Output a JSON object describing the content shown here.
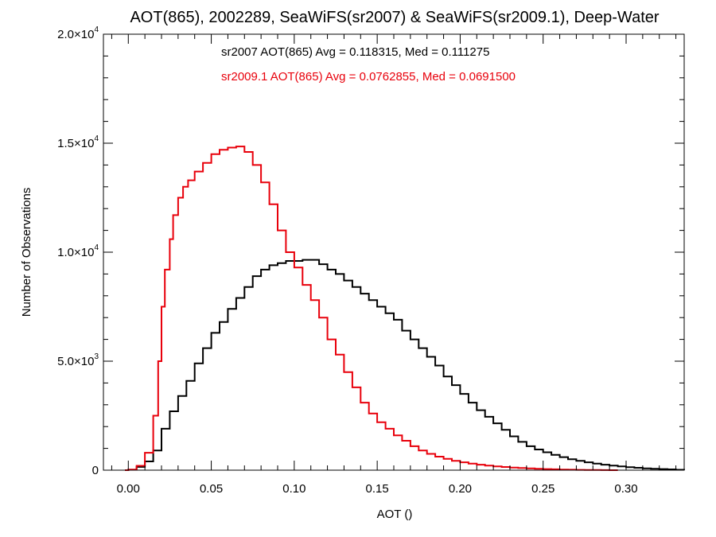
{
  "chart_data": {
    "type": "line",
    "title": "AOT(865), 2002289, SeaWiFS(sr2007) & SeaWiFS(sr2009.1), Deep-Water",
    "xlabel": "AOT ()",
    "ylabel": "Number of Observations",
    "xlim": [
      -0.015,
      0.335
    ],
    "ylim": [
      0,
      20000
    ],
    "x_ticks": [
      0.0,
      0.05,
      0.1,
      0.15,
      0.2,
      0.25,
      0.3
    ],
    "x_tick_labels": [
      "0.00",
      "0.05",
      "0.10",
      "0.15",
      "0.20",
      "0.25",
      "0.30"
    ],
    "y_ticks": [
      0,
      5000,
      10000,
      15000,
      20000
    ],
    "y_tick_labels": [
      {
        "mant": "0",
        "exp": ""
      },
      {
        "mant": "5.0×10",
        "exp": "3"
      },
      {
        "mant": "1.0×10",
        "exp": "4"
      },
      {
        "mant": "1.5×10",
        "exp": "4"
      },
      {
        "mant": "2.0×10",
        "exp": "4"
      }
    ],
    "grid": false,
    "legend": "none",
    "annotations": [
      {
        "text": "sr2007 AOT(865) Avg = 0.118315, Med = 0.111275",
        "color": "#000000"
      },
      {
        "text": "sr2009.1 AOT(865) Avg = 0.0762855, Med = 0.0691500",
        "color": "#e8000b"
      }
    ],
    "series": [
      {
        "color": "#000000",
        "step": "histogram",
        "points": [
          [
            -0.002,
            0
          ],
          [
            0.0,
            20
          ],
          [
            0.005,
            150
          ],
          [
            0.01,
            400
          ],
          [
            0.015,
            900
          ],
          [
            0.02,
            1900
          ],
          [
            0.025,
            2700
          ],
          [
            0.03,
            3400
          ],
          [
            0.035,
            4100
          ],
          [
            0.04,
            4900
          ],
          [
            0.045,
            5600
          ],
          [
            0.05,
            6300
          ],
          [
            0.055,
            6800
          ],
          [
            0.06,
            7400
          ],
          [
            0.065,
            7900
          ],
          [
            0.07,
            8400
          ],
          [
            0.075,
            8900
          ],
          [
            0.08,
            9200
          ],
          [
            0.085,
            9400
          ],
          [
            0.09,
            9500
          ],
          [
            0.095,
            9600
          ],
          [
            0.1,
            9600
          ],
          [
            0.105,
            9650
          ],
          [
            0.11,
            9650
          ],
          [
            0.115,
            9450
          ],
          [
            0.12,
            9200
          ],
          [
            0.125,
            9000
          ],
          [
            0.13,
            8700
          ],
          [
            0.135,
            8400
          ],
          [
            0.14,
            8100
          ],
          [
            0.145,
            7800
          ],
          [
            0.15,
            7500
          ],
          [
            0.155,
            7200
          ],
          [
            0.16,
            6900
          ],
          [
            0.165,
            6400
          ],
          [
            0.17,
            6000
          ],
          [
            0.175,
            5600
          ],
          [
            0.18,
            5200
          ],
          [
            0.185,
            4800
          ],
          [
            0.19,
            4300
          ],
          [
            0.195,
            3900
          ],
          [
            0.2,
            3500
          ],
          [
            0.205,
            3100
          ],
          [
            0.21,
            2750
          ],
          [
            0.215,
            2450
          ],
          [
            0.22,
            2150
          ],
          [
            0.225,
            1850
          ],
          [
            0.23,
            1550
          ],
          [
            0.235,
            1300
          ],
          [
            0.24,
            1100
          ],
          [
            0.245,
            950
          ],
          [
            0.25,
            820
          ],
          [
            0.255,
            700
          ],
          [
            0.26,
            600
          ],
          [
            0.265,
            500
          ],
          [
            0.27,
            430
          ],
          [
            0.275,
            360
          ],
          [
            0.28,
            300
          ],
          [
            0.285,
            250
          ],
          [
            0.29,
            210
          ],
          [
            0.295,
            170
          ],
          [
            0.3,
            140
          ],
          [
            0.305,
            110
          ],
          [
            0.31,
            85
          ],
          [
            0.315,
            65
          ],
          [
            0.32,
            50
          ],
          [
            0.325,
            35
          ],
          [
            0.33,
            20
          ],
          [
            0.335,
            10
          ]
        ]
      },
      {
        "color": "#e8000b",
        "step": "histogram",
        "points": [
          [
            -0.002,
            0
          ],
          [
            0.0,
            30
          ],
          [
            0.005,
            200
          ],
          [
            0.01,
            800
          ],
          [
            0.015,
            2500
          ],
          [
            0.018,
            5000
          ],
          [
            0.02,
            7500
          ],
          [
            0.022,
            9200
          ],
          [
            0.025,
            10600
          ],
          [
            0.027,
            11700
          ],
          [
            0.03,
            12500
          ],
          [
            0.033,
            13000
          ],
          [
            0.036,
            13300
          ],
          [
            0.04,
            13700
          ],
          [
            0.045,
            14100
          ],
          [
            0.05,
            14500
          ],
          [
            0.055,
            14700
          ],
          [
            0.06,
            14800
          ],
          [
            0.065,
            14850
          ],
          [
            0.07,
            14600
          ],
          [
            0.075,
            14000
          ],
          [
            0.08,
            13200
          ],
          [
            0.085,
            12200
          ],
          [
            0.09,
            11000
          ],
          [
            0.095,
            10000
          ],
          [
            0.1,
            9300
          ],
          [
            0.105,
            8500
          ],
          [
            0.11,
            7800
          ],
          [
            0.115,
            7000
          ],
          [
            0.12,
            6000
          ],
          [
            0.125,
            5300
          ],
          [
            0.13,
            4500
          ],
          [
            0.135,
            3800
          ],
          [
            0.14,
            3100
          ],
          [
            0.145,
            2600
          ],
          [
            0.15,
            2200
          ],
          [
            0.155,
            1900
          ],
          [
            0.16,
            1600
          ],
          [
            0.165,
            1350
          ],
          [
            0.17,
            1100
          ],
          [
            0.175,
            900
          ],
          [
            0.18,
            750
          ],
          [
            0.185,
            620
          ],
          [
            0.19,
            520
          ],
          [
            0.195,
            430
          ],
          [
            0.2,
            360
          ],
          [
            0.205,
            300
          ],
          [
            0.21,
            250
          ],
          [
            0.215,
            210
          ],
          [
            0.22,
            175
          ],
          [
            0.225,
            145
          ],
          [
            0.23,
            120
          ],
          [
            0.235,
            100
          ],
          [
            0.24,
            80
          ],
          [
            0.245,
            65
          ],
          [
            0.25,
            50
          ],
          [
            0.255,
            40
          ],
          [
            0.26,
            30
          ],
          [
            0.265,
            22
          ],
          [
            0.27,
            15
          ],
          [
            0.275,
            10
          ],
          [
            0.28,
            6
          ],
          [
            0.285,
            3
          ],
          [
            0.29,
            0
          ]
        ]
      }
    ]
  }
}
